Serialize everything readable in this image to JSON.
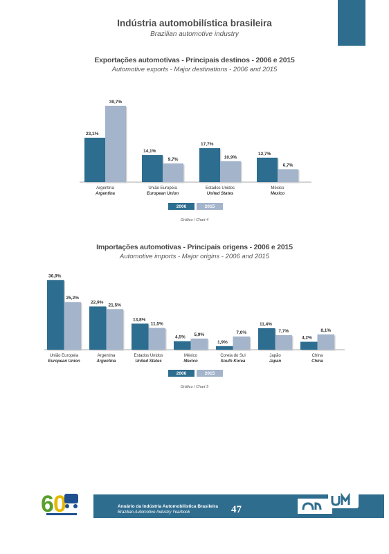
{
  "header": {
    "title": "Indústria automobilística brasileira",
    "subtitle": "Brazilian automotive industry"
  },
  "colors": {
    "series_2006": "#2d6d8f",
    "series_2015": "#a3b4cb",
    "accent": "#2f6d8f"
  },
  "chart_data": [
    {
      "type": "bar",
      "title": "Exportações automotivas - Principais destinos - 2006 e 2015",
      "subtitle": "Automotive exports - Major destinations - 2006 and 2015",
      "categories": [
        "Argentina",
        "União Europeia",
        "Estados Unidos",
        "México"
      ],
      "categories_en": [
        "Argentina",
        "European Union",
        "United States",
        "Mexico"
      ],
      "series": [
        {
          "name": "2006",
          "values": [
            23.1,
            14.1,
            17.7,
            12.7
          ],
          "labels": [
            "23,1%",
            "14,1%",
            "17,7%",
            "12,7%"
          ]
        },
        {
          "name": "2015",
          "values": [
            39.7,
            9.7,
            10.9,
            6.7
          ],
          "labels": [
            "39,7%",
            "9,7%",
            "10,9%",
            "6,7%"
          ]
        }
      ],
      "ylim": [
        0,
        40
      ],
      "grid": false,
      "legend": "bottom",
      "caption": "Gráfico / Chart 4"
    },
    {
      "type": "bar",
      "title": "Importações automotivas - Principais origens - 2006 e 2015",
      "subtitle": "Automotive imports - Major origins - 2006 and 2015",
      "categories": [
        "União Europeia",
        "Argentina",
        "Estados Unidos",
        "México",
        "Coreia do Sul",
        "Japão",
        "China"
      ],
      "categories_en": [
        "European Union",
        "Argentina",
        "United States",
        "Mexico",
        "South Korea",
        "Japan",
        "China"
      ],
      "series": [
        {
          "name": "2006",
          "values": [
            36.9,
            22.9,
            13.8,
            4.5,
            1.9,
            11.4,
            4.2
          ],
          "labels": [
            "36,9%",
            "22,9%",
            "13,8%",
            "4,5%",
            "1,9%",
            "11,4%",
            "4,2%"
          ]
        },
        {
          "name": "2015",
          "values": [
            25.2,
            21.5,
            11.5,
            5.9,
            7.0,
            7.7,
            8.1
          ],
          "labels": [
            "25,2%",
            "21,5%",
            "11,5%",
            "5,9%",
            "7,0%",
            "7,7%",
            "8,1%"
          ]
        }
      ],
      "ylim": [
        0,
        37
      ],
      "grid": false,
      "legend": "bottom",
      "caption": "Gráfico / Chart 5"
    }
  ],
  "footer": {
    "line1": "Anuário da Indústria Automobilística Brasileira",
    "line2": "Brazilian Automotive Industry Yearbook",
    "page_number": "47"
  }
}
